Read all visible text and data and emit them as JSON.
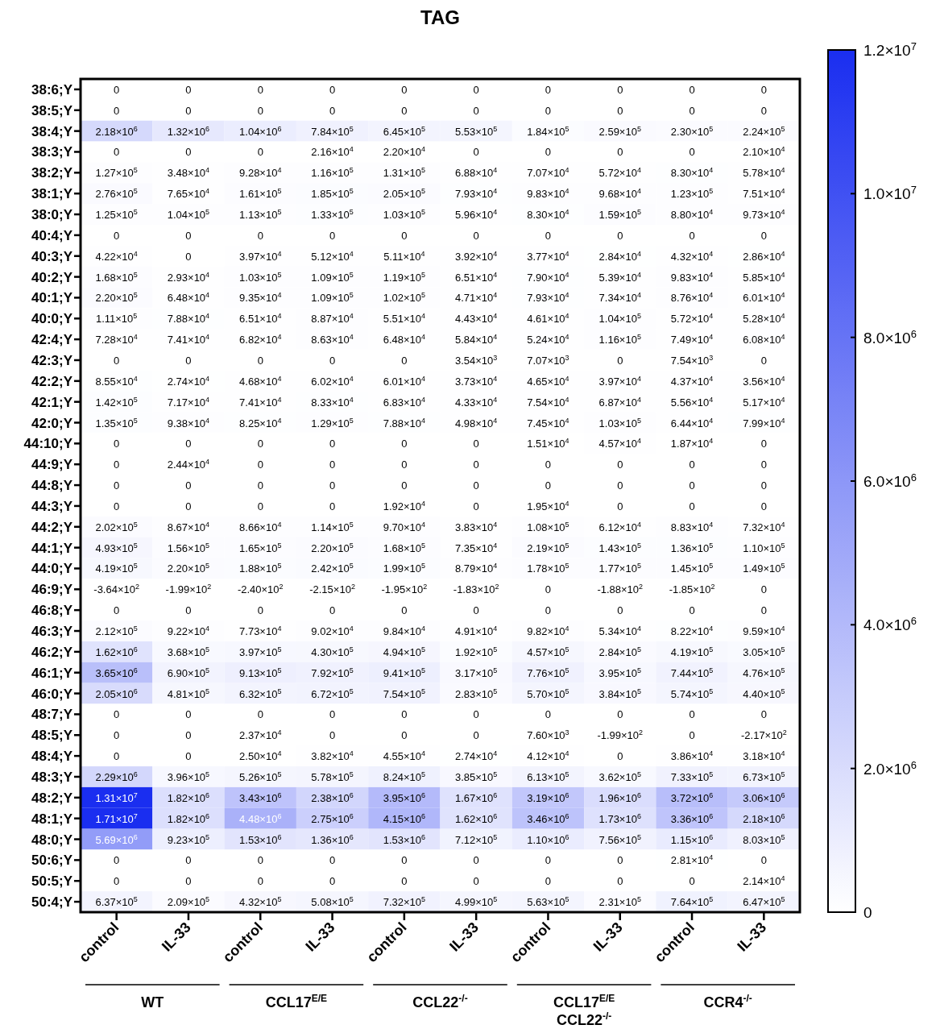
{
  "chart_data": {
    "type": "heatmap",
    "title": "TAG",
    "categories": [
      "control",
      "IL-33",
      "control",
      "IL-33",
      "control",
      "IL-33",
      "control",
      "IL-33",
      "control",
      "IL-33"
    ],
    "y_categories": [
      "38:6;Y",
      "38:5;Y",
      "38:4;Y",
      "38:3;Y",
      "38:2;Y",
      "38:1;Y",
      "38:0;Y",
      "40:4;Y",
      "40:3;Y",
      "40:2;Y",
      "40:1;Y",
      "40:0;Y",
      "42:4;Y",
      "42:3;Y",
      "42:2;Y",
      "42:1;Y",
      "42:0;Y",
      "44:10;Y",
      "44:9;Y",
      "44:8;Y",
      "44:3;Y",
      "44:2;Y",
      "44:1;Y",
      "44:0;Y",
      "46:9;Y",
      "46:8;Y",
      "46:3;Y",
      "46:2;Y",
      "46:1;Y",
      "46:0;Y",
      "48:7;Y",
      "48:5;Y",
      "48:4;Y",
      "48:3;Y",
      "48:2;Y",
      "48:1;Y",
      "48:0;Y",
      "50:6;Y",
      "50:5;Y",
      "50:4;Y"
    ],
    "cells": [
      [
        0,
        0,
        0,
        0,
        0,
        0,
        0,
        0,
        0,
        0
      ],
      [
        0,
        0,
        0,
        0,
        0,
        0,
        0,
        0,
        0,
        0
      ],
      [
        2180000.0,
        1320000.0,
        1040000.0,
        784000.0,
        645000.0,
        553000.0,
        184000.0,
        259000.0,
        230000.0,
        224000.0
      ],
      [
        0,
        0,
        0,
        21600.0,
        22000.0,
        0,
        0,
        0,
        0,
        21000.0
      ],
      [
        127000.0,
        34800.0,
        92800.0,
        116000.0,
        131000.0,
        68800.0,
        70700.0,
        57200.0,
        83000.0,
        57800.0
      ],
      [
        276000.0,
        76500.0,
        161000.0,
        185000.0,
        205000.0,
        79300.0,
        98300.0,
        96800.0,
        123000.0,
        75100.0
      ],
      [
        125000.0,
        104000.0,
        113000.0,
        133000.0,
        103000.0,
        59600.0,
        83000.0,
        159000.0,
        88000.0,
        97300.0
      ],
      [
        0,
        0,
        0,
        0,
        0,
        0,
        0,
        0,
        0,
        0
      ],
      [
        42200.0,
        0,
        39700.0,
        51200.0,
        51100.0,
        39200.0,
        37700.0,
        28400.0,
        43200.0,
        28600.0
      ],
      [
        168000.0,
        29300.0,
        103000.0,
        109000.0,
        119000.0,
        65100.0,
        79000.0,
        53900.0,
        98300.0,
        58500.0
      ],
      [
        220000.0,
        64800.0,
        93500.0,
        109000.0,
        102000.0,
        47100.0,
        79300.0,
        73400.0,
        87600.0,
        60100.0
      ],
      [
        111000.0,
        78800.0,
        65100.0,
        88700.0,
        55100.0,
        44300.0,
        46100.0,
        104000.0,
        57200.0,
        52800.0
      ],
      [
        72800.0,
        74100.0,
        68200.0,
        86300.0,
        64800.0,
        58400.0,
        52400.0,
        116000.0,
        74900.0,
        60800.0
      ],
      [
        0,
        0,
        0,
        0,
        0,
        3540.0,
        7070.0,
        0,
        7540.0,
        0
      ],
      [
        85500.0,
        27400.0,
        46800.0,
        60200.0,
        60100.0,
        37300.0,
        46500.0,
        39700.0,
        43700.0,
        35600.0
      ],
      [
        142000.0,
        71700.0,
        74100.0,
        83300.0,
        68300.0,
        43300.0,
        75400.0,
        68700.0,
        55600.0,
        51700.0
      ],
      [
        135000.0,
        93800.0,
        82500.0,
        129000.0,
        78800.0,
        49800.0,
        74500.0,
        103000.0,
        64400.0,
        79900.0
      ],
      [
        0,
        0,
        0,
        0,
        0,
        0,
        15100.0,
        45700.0,
        18700.0,
        0
      ],
      [
        0,
        24400.0,
        0,
        0,
        0,
        0,
        0,
        0,
        0,
        0
      ],
      [
        0,
        0,
        0,
        0,
        0,
        0,
        0,
        0,
        0,
        0
      ],
      [
        0,
        0,
        0,
        0,
        19200.0,
        0,
        19500.0,
        0,
        0,
        0
      ],
      [
        202000.0,
        86700.0,
        86600.0,
        114000.0,
        97000.0,
        38300.0,
        108000.0,
        61200.0,
        88300.0,
        73200.0
      ],
      [
        493000.0,
        156000.0,
        165000.0,
        220000.0,
        168000.0,
        73500.0,
        219000.0,
        143000.0,
        136000.0,
        110000.0
      ],
      [
        419000.0,
        220000.0,
        188000.0,
        242000.0,
        199000.0,
        87900.0,
        178000.0,
        177000.0,
        145000.0,
        149000.0
      ],
      [
        -364.0,
        -199.0,
        -240.0,
        -215.0,
        -195.0,
        -183.0,
        0,
        -188.0,
        -185.0,
        0
      ],
      [
        0,
        0,
        0,
        0,
        0,
        0,
        0,
        0,
        0,
        0
      ],
      [
        212000.0,
        92200.0,
        77300.0,
        90200.0,
        98400.0,
        49100.0,
        98200.0,
        53400.0,
        82200.0,
        95900.0
      ],
      [
        1620000.0,
        368000.0,
        397000.0,
        430000.0,
        494000.0,
        192000.0,
        457000.0,
        284000.0,
        419000.0,
        305000.0
      ],
      [
        3650000.0,
        690000.0,
        913000.0,
        792000.0,
        941000.0,
        317000.0,
        776000.0,
        395000.0,
        744000.0,
        476000.0
      ],
      [
        2050000.0,
        481000.0,
        632000.0,
        672000.0,
        754000.0,
        283000.0,
        570000.0,
        384000.0,
        574000.0,
        440000.0
      ],
      [
        0,
        0,
        0,
        0,
        0,
        0,
        0,
        0,
        0,
        0
      ],
      [
        0,
        0,
        23700.0,
        0,
        0,
        0,
        7600.0,
        -199.0,
        0,
        -217.0
      ],
      [
        0,
        0,
        25000.0,
        38200.0,
        45500.0,
        27400.0,
        41200.0,
        0,
        38600.0,
        31800.0
      ],
      [
        2290000.0,
        396000.0,
        526000.0,
        578000.0,
        824000.0,
        385000.0,
        613000.0,
        362000.0,
        733000.0,
        673000.0
      ],
      [
        13100000.0,
        1820000.0,
        3430000.0,
        2380000.0,
        3950000.0,
        1670000.0,
        3190000.0,
        1960000.0,
        3720000.0,
        3060000.0
      ],
      [
        17100000.0,
        1820000.0,
        4480000.0,
        2750000.0,
        4150000.0,
        1620000.0,
        3460000.0,
        1730000.0,
        3360000.0,
        2180000.0
      ],
      [
        5690000.0,
        923000.0,
        1530000.0,
        1360000.0,
        1530000.0,
        712000.0,
        1100000.0,
        756000.0,
        1150000.0,
        803000.0
      ],
      [
        0,
        0,
        0,
        0,
        0,
        0,
        0,
        0,
        28100.0,
        0
      ],
      [
        0,
        0,
        0,
        0,
        0,
        0,
        0,
        0,
        0,
        21400.0
      ],
      [
        637000.0,
        209000.0,
        432000.0,
        508000.0,
        732000.0,
        499000.0,
        563000.0,
        231000.0,
        764000.0,
        647000.0
      ]
    ],
    "clim": [
      0,
      12000000
    ],
    "cticks": [
      0,
      {
        "value": 2000000,
        "label": "2.0×10$^{6}$"
      },
      {
        "value": 4000000,
        "label": "4.0×10$^{6}$"
      },
      {
        "value": 6000000,
        "label": "6.0×10$^{6}$"
      },
      {
        "value": 8000000,
        "label": "8.0×10$^{6}$"
      },
      {
        "value": 10000000,
        "label": "1.0×10$^{7}$"
      },
      {
        "value": 12000000,
        "label": "1.2×10$^{7}$"
      }
    ],
    "cell_labels": [
      [
        "0",
        "0",
        "0",
        "0",
        "0",
        "0",
        "0",
        "0",
        "0",
        "0"
      ],
      [
        "0",
        "0",
        "0",
        "0",
        "0",
        "0",
        "0",
        "0",
        "0",
        "0"
      ],
      [
        "2.18×10$^{6}$",
        "1.32×10$^{6}$",
        "1.04×10$^{6}$",
        "7.84×10$^{5}$",
        "6.45×10$^{5}$",
        "5.53×10$^{5}$",
        "1.84×10$^{5}$",
        "2.59×10$^{5}$",
        "2.30×10$^{5}$",
        "2.24×10$^{5}$"
      ],
      [
        "0",
        "0",
        "0",
        "2.16×10$^{4}$",
        "2.20×10$^{4}$",
        "0",
        "0",
        "0",
        "0",
        "2.10×10$^{4}$"
      ],
      [
        "1.27×10$^{5}$",
        "3.48×10$^{4}$",
        "9.28×10$^{4}$",
        "1.16×10$^{5}$",
        "1.31×10$^{5}$",
        "6.88×10$^{4}$",
        "7.07×10$^{4}$",
        "5.72×10$^{4}$",
        "8.30×10$^{4}$",
        "5.78×10$^{4}$"
      ],
      [
        "2.76×10$^{5}$",
        "7.65×10$^{4}$",
        "1.61×10$^{5}$",
        "1.85×10$^{5}$",
        "2.05×10$^{5}$",
        "7.93×10$^{4}$",
        "9.83×10$^{4}$",
        "9.68×10$^{4}$",
        "1.23×10$^{5}$",
        "7.51×10$^{4}$"
      ],
      [
        "1.25×10$^{5}$",
        "1.04×10$^{5}$",
        "1.13×10$^{5}$",
        "1.33×10$^{5}$",
        "1.03×10$^{5}$",
        "5.96×10$^{4}$",
        "8.30×10$^{4}$",
        "1.59×10$^{5}$",
        "8.80×10$^{4}$",
        "9.73×10$^{4}$"
      ],
      [
        "0",
        "0",
        "0",
        "0",
        "0",
        "0",
        "0",
        "0",
        "0",
        "0"
      ],
      [
        "4.22×10$^{4}$",
        "0",
        "3.97×10$^{4}$",
        "5.12×10$^{4}$",
        "5.11×10$^{4}$",
        "3.92×10$^{4}$",
        "3.77×10$^{4}$",
        "2.84×10$^{4}$",
        "4.32×10$^{4}$",
        "2.86×10$^{4}$"
      ],
      [
        "1.68×10$^{5}$",
        "2.93×10$^{4}$",
        "1.03×10$^{5}$",
        "1.09×10$^{5}$",
        "1.19×10$^{5}$",
        "6.51×10$^{4}$",
        "7.90×10$^{4}$",
        "5.39×10$^{4}$",
        "9.83×10$^{4}$",
        "5.85×10$^{4}$"
      ],
      [
        "2.20×10$^{5}$",
        "6.48×10$^{4}$",
        "9.35×10$^{4}$",
        "1.09×10$^{5}$",
        "1.02×10$^{5}$",
        "4.71×10$^{4}$",
        "7.93×10$^{4}$",
        "7.34×10$^{4}$",
        "8.76×10$^{4}$",
        "6.01×10$^{4}$"
      ],
      [
        "1.11×10$^{5}$",
        "7.88×10$^{4}$",
        "6.51×10$^{4}$",
        "8.87×10$^{4}$",
        "5.51×10$^{4}$",
        "4.43×10$^{4}$",
        "4.61×10$^{4}$",
        "1.04×10$^{5}$",
        "5.72×10$^{4}$",
        "5.28×10$^{4}$"
      ],
      [
        "7.28×10$^{4}$",
        "7.41×10$^{4}$",
        "6.82×10$^{4}$",
        "8.63×10$^{4}$",
        "6.48×10$^{4}$",
        "5.84×10$^{4}$",
        "5.24×10$^{4}$",
        "1.16×10$^{5}$",
        "7.49×10$^{4}$",
        "6.08×10$^{4}$"
      ],
      [
        "0",
        "0",
        "0",
        "0",
        "0",
        "3.54×10$^{3}$",
        "7.07×10$^{3}$",
        "0",
        "7.54×10$^{3}$",
        "0"
      ],
      [
        "8.55×10$^{4}$",
        "2.74×10$^{4}$",
        "4.68×10$^{4}$",
        "6.02×10$^{4}$",
        "6.01×10$^{4}$",
        "3.73×10$^{4}$",
        "4.65×10$^{4}$",
        "3.97×10$^{4}$",
        "4.37×10$^{4}$",
        "3.56×10$^{4}$"
      ],
      [
        "1.42×10$^{5}$",
        "7.17×10$^{4}$",
        "7.41×10$^{4}$",
        "8.33×10$^{4}$",
        "6.83×10$^{4}$",
        "4.33×10$^{4}$",
        "7.54×10$^{4}$",
        "6.87×10$^{4}$",
        "5.56×10$^{4}$",
        "5.17×10$^{4}$"
      ],
      [
        "1.35×10$^{5}$",
        "9.38×10$^{4}$",
        "8.25×10$^{4}$",
        "1.29×10$^{5}$",
        "7.88×10$^{4}$",
        "4.98×10$^{4}$",
        "7.45×10$^{4}$",
        "1.03×10$^{5}$",
        "6.44×10$^{4}$",
        "7.99×10$^{4}$"
      ],
      [
        "0",
        "0",
        "0",
        "0",
        "0",
        "0",
        "1.51×10$^{4}$",
        "4.57×10$^{4}$",
        "1.87×10$^{4}$",
        "0"
      ],
      [
        "0",
        "2.44×10$^{4}$",
        "0",
        "0",
        "0",
        "0",
        "0",
        "0",
        "0",
        "0"
      ],
      [
        "0",
        "0",
        "0",
        "0",
        "0",
        "0",
        "0",
        "0",
        "0",
        "0"
      ],
      [
        "0",
        "0",
        "0",
        "0",
        "1.92×10$^{4}$",
        "0",
        "1.95×10$^{4}$",
        "0",
        "0",
        "0"
      ],
      [
        "2.02×10$^{5}$",
        "8.67×10$^{4}$",
        "8.66×10$^{4}$",
        "1.14×10$^{5}$",
        "9.70×10$^{4}$",
        "3.83×10$^{4}$",
        "1.08×10$^{5}$",
        "6.12×10$^{4}$",
        "8.83×10$^{4}$",
        "7.32×10$^{4}$"
      ],
      [
        "4.93×10$^{5}$",
        "1.56×10$^{5}$",
        "1.65×10$^{5}$",
        "2.20×10$^{5}$",
        "1.68×10$^{5}$",
        "7.35×10$^{4}$",
        "2.19×10$^{5}$",
        "1.43×10$^{5}$",
        "1.36×10$^{5}$",
        "1.10×10$^{5}$"
      ],
      [
        "4.19×10$^{5}$",
        "2.20×10$^{5}$",
        "1.88×10$^{5}$",
        "2.42×10$^{5}$",
        "1.99×10$^{5}$",
        "8.79×10$^{4}$",
        "1.78×10$^{5}$",
        "1.77×10$^{5}$",
        "1.45×10$^{5}$",
        "1.49×10$^{5}$"
      ],
      [
        "-3.64×10$^{2}$",
        "-1.99×10$^{2}$",
        "-2.40×10$^{2}$",
        "-2.15×10$^{2}$",
        "-1.95×10$^{2}$",
        "-1.83×10$^{2}$",
        "0",
        "-1.88×10$^{2}$",
        "-1.85×10$^{2}$",
        "0"
      ],
      [
        "0",
        "0",
        "0",
        "0",
        "0",
        "0",
        "0",
        "0",
        "0",
        "0"
      ],
      [
        "2.12×10$^{5}$",
        "9.22×10$^{4}$",
        "7.73×10$^{4}$",
        "9.02×10$^{4}$",
        "9.84×10$^{4}$",
        "4.91×10$^{4}$",
        "9.82×10$^{4}$",
        "5.34×10$^{4}$",
        "8.22×10$^{4}$",
        "9.59×10$^{4}$"
      ],
      [
        "1.62×10$^{6}$",
        "3.68×10$^{5}$",
        "3.97×10$^{5}$",
        "4.30×10$^{5}$",
        "4.94×10$^{5}$",
        "1.92×10$^{5}$",
        "4.57×10$^{5}$",
        "2.84×10$^{5}$",
        "4.19×10$^{5}$",
        "3.05×10$^{5}$"
      ],
      [
        "3.65×10$^{6}$",
        "6.90×10$^{5}$",
        "9.13×10$^{5}$",
        "7.92×10$^{5}$",
        "9.41×10$^{5}$",
        "3.17×10$^{5}$",
        "7.76×10$^{5}$",
        "3.95×10$^{5}$",
        "7.44×10$^{5}$",
        "4.76×10$^{5}$"
      ],
      [
        "2.05×10$^{6}$",
        "4.81×10$^{5}$",
        "6.32×10$^{5}$",
        "6.72×10$^{5}$",
        "7.54×10$^{5}$",
        "2.83×10$^{5}$",
        "5.70×10$^{5}$",
        "3.84×10$^{5}$",
        "5.74×10$^{5}$",
        "4.40×10$^{5}$"
      ],
      [
        "0",
        "0",
        "0",
        "0",
        "0",
        "0",
        "0",
        "0",
        "0",
        "0"
      ],
      [
        "0",
        "0",
        "2.37×10$^{4}$",
        "0",
        "0",
        "0",
        "7.60×10$^{3}$",
        "-1.99×10$^{2}$",
        "0",
        "-2.17×10$^{2}$"
      ],
      [
        "0",
        "0",
        "2.50×10$^{4}$",
        "3.82×10$^{4}$",
        "4.55×10$^{4}$",
        "2.74×10$^{4}$",
        "4.12×10$^{4}$",
        "0",
        "3.86×10$^{4}$",
        "3.18×10$^{4}$"
      ],
      [
        "2.29×10$^{6}$",
        "3.96×10$^{5}$",
        "5.26×10$^{5}$",
        "5.78×10$^{5}$",
        "8.24×10$^{5}$",
        "3.85×10$^{5}$",
        "6.13×10$^{5}$",
        "3.62×10$^{5}$",
        "7.33×10$^{5}$",
        "6.73×10$^{5}$"
      ],
      [
        "1.31×10$^{7}$",
        "1.82×10$^{6}$",
        "3.43×10$^{6}$",
        "2.38×10$^{6}$",
        "3.95×10$^{6}$",
        "1.67×10$^{6}$",
        "3.19×10$^{6}$",
        "1.96×10$^{6}$",
        "3.72×10$^{6}$",
        "3.06×10$^{6}$"
      ],
      [
        "1.71×10$^{7}$",
        "1.82×10$^{6}$",
        "4.48×10$^{6}$",
        "2.75×10$^{6}$",
        "4.15×10$^{6}$",
        "1.62×10$^{6}$",
        "3.46×10$^{6}$",
        "1.73×10$^{6}$",
        "3.36×10$^{6}$",
        "2.18×10$^{6}$"
      ],
      [
        "5.69×10$^{6}$",
        "9.23×10$^{5}$",
        "1.53×10$^{6}$",
        "1.36×10$^{6}$",
        "1.53×10$^{6}$",
        "7.12×10$^{5}$",
        "1.10×10$^{6}$",
        "7.56×10$^{5}$",
        "1.15×10$^{6}$",
        "8.03×10$^{5}$"
      ],
      [
        "0",
        "0",
        "0",
        "0",
        "0",
        "0",
        "0",
        "0",
        "2.81×10$^{4}$",
        "0"
      ],
      [
        "0",
        "0",
        "0",
        "0",
        "0",
        "0",
        "0",
        "0",
        "0",
        "2.14×10$^{4}$"
      ],
      [
        "6.37×10$^{5}$",
        "2.09×10$^{5}$",
        "4.32×10$^{5}$",
        "5.08×10$^{5}$",
        "7.32×10$^{5}$",
        "4.99×10$^{5}$",
        "5.63×10$^{5}$",
        "2.31×10$^{5}$",
        "7.64×10$^{5}$",
        "6.47×10$^{5}$"
      ]
    ],
    "annotations": [
      "WT",
      "CCL17$^{E/E}$",
      "CCL22$^{-/-}$",
      "CCL17$^{E/E}$\nCCL22$^{-/-}$",
      "CCR4$^{-/-}$"
    ]
  }
}
